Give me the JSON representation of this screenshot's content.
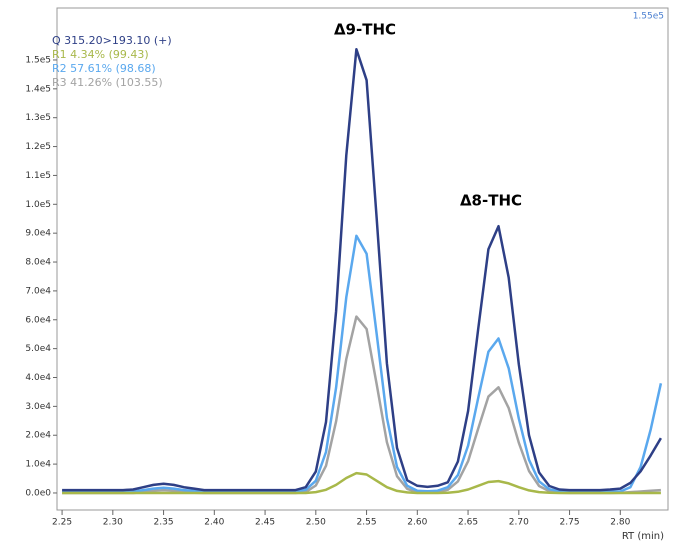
{
  "chart_data": {
    "type": "line",
    "annotations": [
      "Δ9-THC",
      "Δ8-THC"
    ],
    "y_max_label": "1.55e5",
    "x_label": "RT (min)",
    "x": [
      2.25,
      2.26,
      2.27,
      2.28,
      2.29,
      2.3,
      2.31,
      2.32,
      2.33,
      2.34,
      2.35,
      2.36,
      2.37,
      2.38,
      2.39,
      2.4,
      2.41,
      2.42,
      2.43,
      2.44,
      2.45,
      2.46,
      2.47,
      2.48,
      2.49,
      2.5,
      2.51,
      2.52,
      2.53,
      2.54,
      2.55,
      2.56,
      2.57,
      2.58,
      2.59,
      2.6,
      2.61,
      2.62,
      2.63,
      2.64,
      2.65,
      2.66,
      2.67,
      2.68,
      2.69,
      2.7,
      2.71,
      2.72,
      2.73,
      2.74,
      2.75,
      2.76,
      2.77,
      2.78,
      2.79,
      2.8,
      2.81,
      2.82,
      2.83,
      2.84
    ],
    "series": [
      {
        "name": "Q 315.20>193.10 (+)",
        "color": "#2e3f86",
        "values": [
          1000,
          1000,
          1000,
          1000,
          1000,
          1000,
          1000,
          1200,
          2000,
          2800,
          3200,
          2800,
          2000,
          1500,
          1000,
          1000,
          1000,
          1000,
          1000,
          1000,
          1000,
          1000,
          1000,
          1000,
          2000,
          7400,
          24600,
          63000,
          117000,
          153700,
          143000,
          95000,
          44900,
          15600,
          4400,
          2500,
          2100,
          2500,
          3700,
          10900,
          28400,
          56800,
          84400,
          92400,
          74600,
          44600,
          20000,
          7100,
          2400,
          1200,
          1000,
          1000,
          1000,
          1000,
          1200,
          1500,
          3500,
          7500,
          13000,
          19000
        ]
      },
      {
        "name": "R1 4.34% (99.43)",
        "color": "#a8b84a",
        "values": [
          0,
          0,
          0,
          0,
          0,
          0,
          0,
          0,
          0,
          0,
          0,
          0,
          0,
          0,
          0,
          0,
          0,
          0,
          0,
          0,
          0,
          0,
          0,
          0,
          0,
          300,
          1100,
          2800,
          5200,
          6900,
          6400,
          4200,
          2000,
          700,
          200,
          0,
          0,
          0,
          100,
          400,
          1200,
          2500,
          3800,
          4100,
          3300,
          2000,
          900,
          300,
          100,
          0,
          0,
          0,
          0,
          0,
          0,
          0,
          0,
          0,
          0,
          0
        ]
      },
      {
        "name": "R2 57.61% (98.68)",
        "color": "#5aa8ee",
        "values": [
          500,
          500,
          500,
          500,
          500,
          500,
          500,
          500,
          1000,
          1500,
          1800,
          1500,
          1000,
          700,
          500,
          500,
          500,
          500,
          500,
          500,
          500,
          500,
          500,
          500,
          1100,
          4200,
          14200,
          36500,
          67800,
          89100,
          82900,
          55000,
          26000,
          9000,
          2500,
          800,
          600,
          800,
          2000,
          6200,
          16400,
          32900,
          48900,
          53500,
          43200,
          25800,
          11500,
          4000,
          1300,
          600,
          500,
          500,
          500,
          500,
          500,
          500,
          2000,
          9000,
          22000,
          38000
        ]
      },
      {
        "name": "R3 41.26% (103.55)",
        "color": "#a3a3a3",
        "values": [
          0,
          0,
          0,
          0,
          0,
          0,
          0,
          0,
          300,
          700,
          1000,
          700,
          300,
          100,
          0,
          0,
          0,
          0,
          0,
          0,
          0,
          0,
          0,
          0,
          300,
          2600,
          9400,
          24800,
          46400,
          61100,
          56800,
          37600,
          17600,
          5800,
          1400,
          300,
          100,
          300,
          1100,
          4000,
          11000,
          22300,
          33400,
          36600,
          29400,
          17400,
          7600,
          2400,
          600,
          100,
          0,
          0,
          0,
          0,
          0,
          100,
          300,
          500,
          800,
          1000
        ]
      }
    ],
    "xlim": [
      2.245,
      2.847
    ],
    "ylim": [
      -5900,
      168000
    ],
    "xticks": [
      {
        "value": 2.25,
        "label": "2.25"
      },
      {
        "value": 2.3,
        "label": "2.30"
      },
      {
        "value": 2.35,
        "label": "2.35"
      },
      {
        "value": 2.4,
        "label": "2.40"
      },
      {
        "value": 2.45,
        "label": "2.45"
      },
      {
        "value": 2.5,
        "label": "2.50"
      },
      {
        "value": 2.55,
        "label": "2.55"
      },
      {
        "value": 2.6,
        "label": "2.60"
      },
      {
        "value": 2.65,
        "label": "2.65"
      },
      {
        "value": 2.7,
        "label": "2.70"
      },
      {
        "value": 2.75,
        "label": "2.75"
      },
      {
        "value": 2.8,
        "label": "2.80"
      }
    ],
    "yticks": [
      {
        "value": 0,
        "label": "0.0e0"
      },
      {
        "value": 10000,
        "label": "1.0e4"
      },
      {
        "value": 20000,
        "label": "2.0e4"
      },
      {
        "value": 30000,
        "label": "3.0e4"
      },
      {
        "value": 40000,
        "label": "4.0e4"
      },
      {
        "value": 50000,
        "label": "5.0e4"
      },
      {
        "value": 60000,
        "label": "6.0e4"
      },
      {
        "value": 70000,
        "label": "7.0e4"
      },
      {
        "value": 80000,
        "label": "8.0e4"
      },
      {
        "value": 90000,
        "label": "9.0e4"
      },
      {
        "value": 100000,
        "label": "1.0e5"
      },
      {
        "value": 110000,
        "label": "1.1e5"
      },
      {
        "value": 120000,
        "label": "1.2e5"
      },
      {
        "value": 130000,
        "label": "1.3e5"
      },
      {
        "value": 140000,
        "label": "1.4e5"
      },
      {
        "value": 150000,
        "label": "1.5e5"
      }
    ]
  }
}
